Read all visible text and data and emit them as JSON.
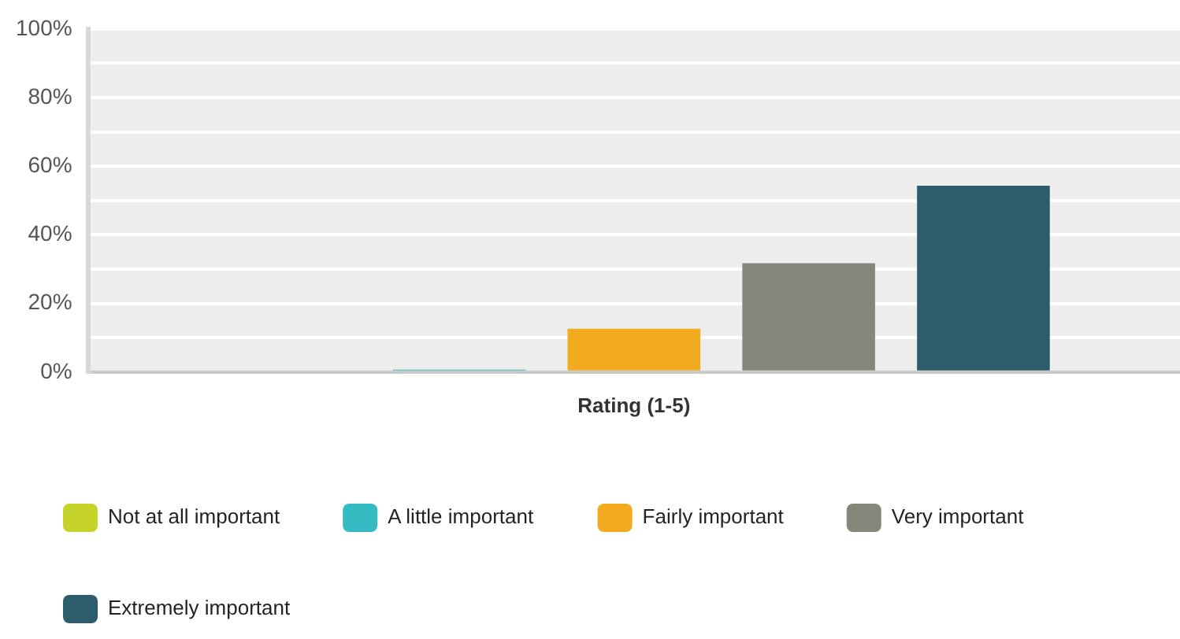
{
  "chart_data": {
    "type": "bar",
    "categories": [
      "Rating (1-5)"
    ],
    "series": [
      {
        "name": "Not at all important",
        "color": "#c5d32b",
        "values": [
          0
        ]
      },
      {
        "name": "A little important",
        "color": "#34bcc2",
        "values": [
          0.7
        ]
      },
      {
        "name": "Fairly important",
        "color": "#f2ab1f",
        "values": [
          12.6
        ]
      },
      {
        "name": "Very important",
        "color": "#86877a",
        "values": [
          31.7
        ]
      },
      {
        "name": "Extremely important",
        "color": "#2d5c6b",
        "values": [
          54.3
        ]
      }
    ],
    "ylim": [
      0,
      100
    ],
    "yticks": [
      {
        "value": 0,
        "label": "0%"
      },
      {
        "value": 10,
        "label": null
      },
      {
        "value": 20,
        "label": "20%"
      },
      {
        "value": 30,
        "label": null
      },
      {
        "value": 40,
        "label": "40%"
      },
      {
        "value": 50,
        "label": null
      },
      {
        "value": 60,
        "label": "60%"
      },
      {
        "value": 70,
        "label": null
      },
      {
        "value": 80,
        "label": "80%"
      },
      {
        "value": 90,
        "label": null
      },
      {
        "value": 100,
        "label": "100%"
      }
    ],
    "grid": "y",
    "legend": "bottom"
  }
}
